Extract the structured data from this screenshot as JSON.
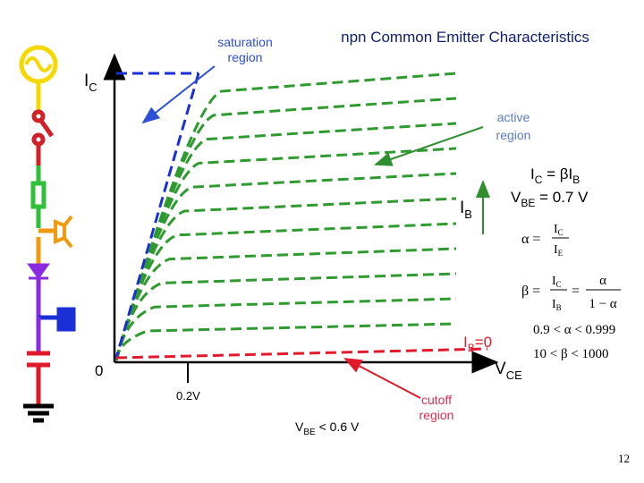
{
  "title": "npn Common Emitter Characteristics",
  "labels": {
    "saturation": [
      "saturation",
      "region"
    ],
    "active": [
      "active",
      "region"
    ],
    "cutoff": [
      "cutoff",
      "region"
    ]
  },
  "axes": {
    "y": {
      "main": "I",
      "sub": "C"
    },
    "x": {
      "main": "V",
      "sub": "CE"
    },
    "origin": "0",
    "tick": "0.2V"
  },
  "ib_arrow": {
    "main": "I",
    "sub": "B"
  },
  "ib_zero": {
    "main": "I",
    "sub": "B",
    "rest": "=0"
  },
  "relations": {
    "ic": {
      "a": "I",
      "b": "C",
      "c": " = βI",
      "d": "B"
    },
    "vbe_on": {
      "a": "V",
      "b": "BE",
      "c": " = 0.7 V"
    },
    "vbe_off": {
      "a": "V",
      "b": "BE",
      "c": " < 0.6 V"
    }
  },
  "alpha": {
    "lhs": "α =",
    "num": {
      "main": "I",
      "sub": "C"
    },
    "den": {
      "main": "I",
      "sub": "E"
    }
  },
  "beta": {
    "lhs": "β =",
    "num": {
      "main": "I",
      "sub": "C"
    },
    "den": {
      "main": "I",
      "sub": "B"
    },
    "eq": "=",
    "num2": "α",
    "den2": "1 − α"
  },
  "ranges": [
    "0.9 < α < 0.999",
    "10 < β < 1000"
  ],
  "page": "12"
}
